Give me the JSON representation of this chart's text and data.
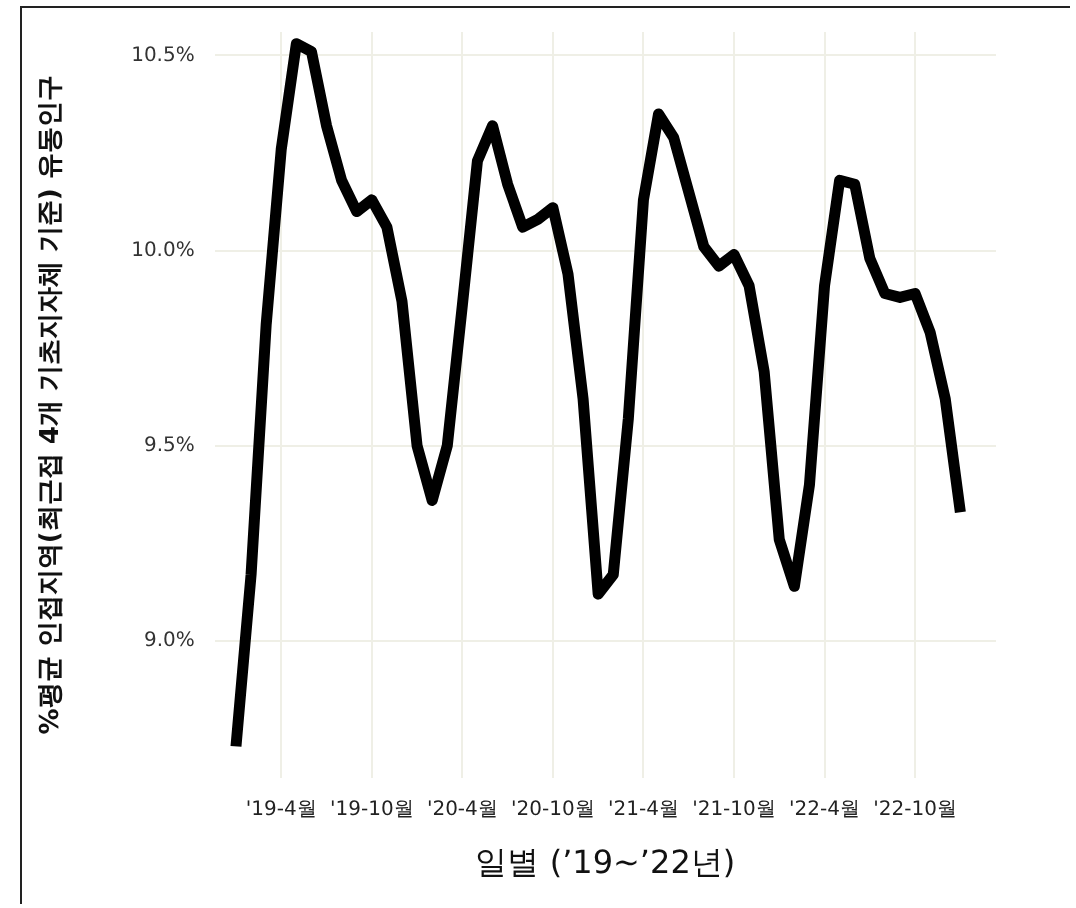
{
  "chart_data": {
    "type": "line",
    "xlabel": "일별 (’19~’22년)",
    "ylabel": "%평균 인접지역(최근접 4개 기초지자체 기준) 유동인구",
    "x": [
      "2019-01",
      "2019-02",
      "2019-03",
      "2019-04",
      "2019-05",
      "2019-06",
      "2019-07",
      "2019-08",
      "2019-09",
      "2019-10",
      "2019-11",
      "2019-12",
      "2020-01",
      "2020-02",
      "2020-03",
      "2020-04",
      "2020-05",
      "2020-06",
      "2020-07",
      "2020-08",
      "2020-09",
      "2020-10",
      "2020-11",
      "2020-12",
      "2021-01",
      "2021-02",
      "2021-03",
      "2021-04",
      "2021-05",
      "2021-06",
      "2021-07",
      "2021-08",
      "2021-09",
      "2021-10",
      "2021-11",
      "2021-12",
      "2022-01",
      "2022-02",
      "2022-03",
      "2022-04",
      "2022-05",
      "2022-06",
      "2022-07",
      "2022-08",
      "2022-09",
      "2022-10",
      "2022-11",
      "2022-12",
      "2023-01"
    ],
    "series": [
      {
        "color": "#000000",
        "values": [
          8.73,
          9.17,
          9.81,
          10.26,
          10.53,
          10.51,
          10.32,
          10.18,
          10.1,
          10.13,
          10.06,
          9.87,
          9.5,
          9.36,
          9.5,
          9.86,
          10.23,
          10.32,
          10.17,
          10.06,
          10.08,
          10.11,
          9.94,
          9.62,
          9.12,
          9.17,
          9.57,
          10.13,
          10.35,
          10.29,
          10.15,
          10.01,
          9.96,
          9.99,
          9.91,
          9.69,
          9.26,
          9.14,
          9.4,
          9.91,
          10.18,
          10.17,
          9.98,
          9.89,
          9.88,
          9.89,
          9.79,
          9.62,
          9.33
        ]
      }
    ],
    "xlim": [
      "2018-11-19",
      "2023-03-12"
    ],
    "xticks": [
      {
        "value": "2019-04",
        "label": "'19-4월"
      },
      {
        "value": "2019-10",
        "label": "'19-10월"
      },
      {
        "value": "2020-04",
        "label": "'20-4월"
      },
      {
        "value": "2020-10",
        "label": "'20-10월"
      },
      {
        "value": "2021-04",
        "label": "'21-4월"
      },
      {
        "value": "2021-10",
        "label": "'21-10월"
      },
      {
        "value": "2022-04",
        "label": "'22-4월"
      },
      {
        "value": "2022-10",
        "label": "'22-10월"
      }
    ],
    "ylim": [
      8.65,
      10.56
    ],
    "yticks": [
      {
        "value": 9,
        "label": "9.0%"
      },
      {
        "value": 9.5,
        "label": "9.5%"
      },
      {
        "value": 10,
        "label": "10.0%"
      },
      {
        "value": 10.5,
        "label": "10.5%"
      }
    ],
    "grid": true,
    "legend": false,
    "marker": "none",
    "line_style": "solid"
  }
}
